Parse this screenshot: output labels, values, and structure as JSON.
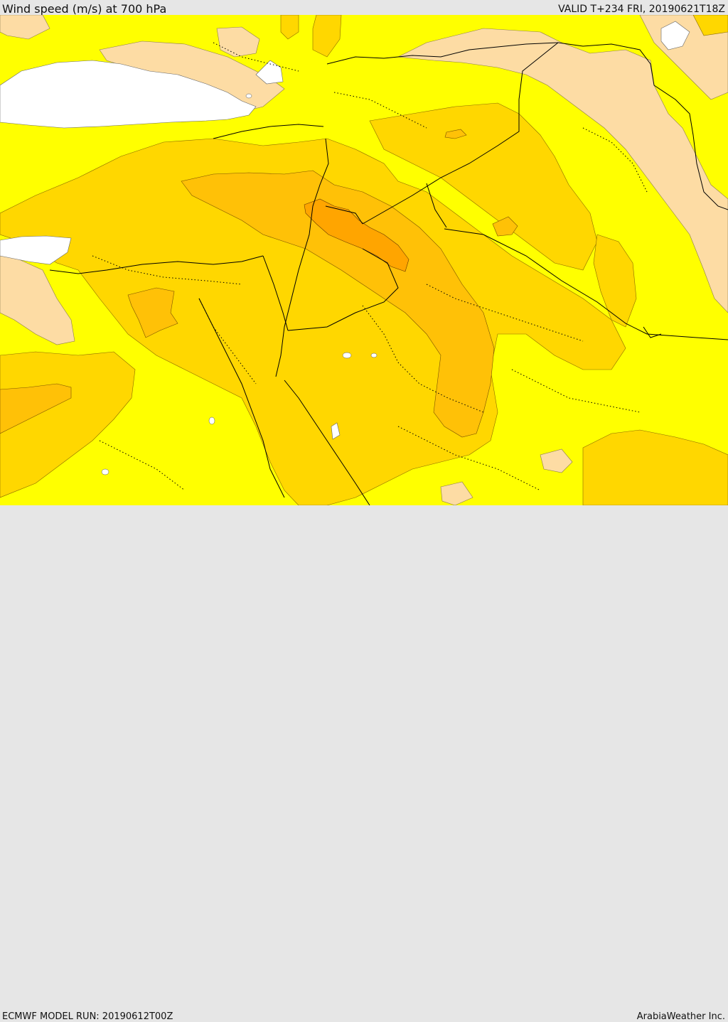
{
  "header": {
    "title": "Wind speed (m/s) at 700 hPa",
    "valid": "VALID T+234 FRI, 20190621T18Z"
  },
  "footer": {
    "model_run": "ECMWF MODEL RUN: 20190612T00Z",
    "credit": "ArabiaWeather Inc."
  },
  "palette": {
    "land_low": "#ffff00",
    "shade_peach": "#fddca4",
    "shade_gold": "#ffd700",
    "shade_amber": "#ffc107",
    "shade_orange": "#ffa500",
    "shade_dark_orange": "#ff8c00",
    "no_data": "#ffffff",
    "borders": "#000000"
  }
}
